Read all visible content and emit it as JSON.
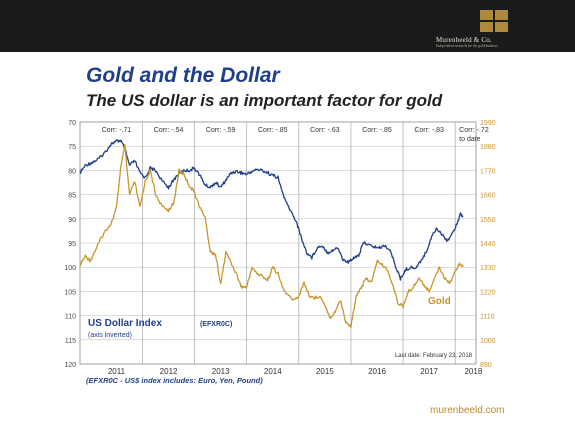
{
  "brand": {
    "name": "Murenbeeld & Co.",
    "tagline": "Independent research for the gold business",
    "footer_url": "murenbeeld.com"
  },
  "header": {
    "title": "Gold and the Dollar",
    "subtitle": "The US dollar is an important factor for gold"
  },
  "note": "(EFXR0C - US$ index includes: Euro, Yen, Pound)",
  "colors": {
    "usd": "#1f3f8a",
    "gold": "#c8962e",
    "title": "#1f3f8a",
    "grid": "#9a9a9a"
  },
  "chart_data": {
    "type": "line",
    "x_labels": [
      "2011",
      "2012",
      "2013",
      "2014",
      "2015",
      "2016",
      "2017",
      "2018"
    ],
    "xlim": [
      2010.8,
      2018.4
    ],
    "left_axis": {
      "ticks": [
        "70",
        "75",
        "80",
        "85",
        "90",
        "95",
        "100",
        "105",
        "110",
        "115",
        "120"
      ],
      "ylim": [
        70,
        120
      ],
      "inverted": true
    },
    "right_axis": {
      "ticks": [
        "1990",
        "1880",
        "1770",
        "1660",
        "1550",
        "1440",
        "1330",
        "1220",
        "1110",
        "1000",
        "890"
      ],
      "ylim": [
        890,
        1990
      ]
    },
    "correlations": [
      "Corr: -.71",
      "Corr: -.54",
      "Corr: -.59",
      "Corr: -.85",
      "Corr: -.63",
      "Corr: -.85",
      "Corr: -.83",
      "Corr: -.72"
    ],
    "correlation_extra": "to date",
    "series": [
      {
        "name": "US Dollar Index",
        "label_suffix": "(EFXR0C)",
        "sub_label": "(axis inverted)",
        "axis": "left",
        "color": "#1f3f8a",
        "points": [
          [
            2010.8,
            80.5
          ],
          [
            2010.9,
            79.0
          ],
          [
            2011.0,
            78.5
          ],
          [
            2011.1,
            78.0
          ],
          [
            2011.2,
            77.2
          ],
          [
            2011.3,
            76.0
          ],
          [
            2011.4,
            74.5
          ],
          [
            2011.5,
            74.0
          ],
          [
            2011.58,
            73.8
          ],
          [
            2011.66,
            75.5
          ],
          [
            2011.75,
            79.0
          ],
          [
            2011.85,
            78.0
          ],
          [
            2011.95,
            80.5
          ],
          [
            2012.05,
            81.5
          ],
          [
            2012.15,
            79.5
          ],
          [
            2012.25,
            80.0
          ],
          [
            2012.4,
            82.5
          ],
          [
            2012.5,
            83.5
          ],
          [
            2012.6,
            82.0
          ],
          [
            2012.7,
            80.5
          ],
          [
            2012.8,
            80.0
          ],
          [
            2012.9,
            80.0
          ],
          [
            2013.0,
            79.5
          ],
          [
            2013.1,
            81.0
          ],
          [
            2013.2,
            83.0
          ],
          [
            2013.3,
            83.5
          ],
          [
            2013.4,
            82.5
          ],
          [
            2013.5,
            83.5
          ],
          [
            2013.6,
            82.0
          ],
          [
            2013.7,
            80.5
          ],
          [
            2013.8,
            80.2
          ],
          [
            2013.9,
            80.5
          ],
          [
            2014.0,
            80.8
          ],
          [
            2014.1,
            80.2
          ],
          [
            2014.2,
            79.8
          ],
          [
            2014.3,
            80.0
          ],
          [
            2014.4,
            80.5
          ],
          [
            2014.5,
            81.0
          ],
          [
            2014.6,
            81.5
          ],
          [
            2014.67,
            84.0
          ],
          [
            2014.75,
            86.5
          ],
          [
            2014.85,
            88.5
          ],
          [
            2014.95,
            90.5
          ],
          [
            2015.05,
            94.0
          ],
          [
            2015.15,
            97.0
          ],
          [
            2015.25,
            98.0
          ],
          [
            2015.35,
            96.0
          ],
          [
            2015.45,
            95.5
          ],
          [
            2015.55,
            97.0
          ],
          [
            2015.65,
            96.5
          ],
          [
            2015.75,
            96.0
          ],
          [
            2015.85,
            98.5
          ],
          [
            2015.95,
            99.0
          ],
          [
            2016.05,
            98.0
          ],
          [
            2016.15,
            97.5
          ],
          [
            2016.25,
            94.8
          ],
          [
            2016.35,
            95.5
          ],
          [
            2016.45,
            95.8
          ],
          [
            2016.55,
            96.0
          ],
          [
            2016.65,
            95.5
          ],
          [
            2016.75,
            96.5
          ],
          [
            2016.85,
            99.5
          ],
          [
            2016.95,
            102.5
          ],
          [
            2017.05,
            100.5
          ],
          [
            2017.15,
            100.0
          ],
          [
            2017.25,
            100.2
          ],
          [
            2017.35,
            98.5
          ],
          [
            2017.45,
            96.8
          ],
          [
            2017.55,
            93.5
          ],
          [
            2017.65,
            92.0
          ],
          [
            2017.75,
            93.2
          ],
          [
            2017.85,
            94.5
          ],
          [
            2017.95,
            93.0
          ],
          [
            2018.05,
            90.5
          ],
          [
            2018.1,
            89.0
          ],
          [
            2018.15,
            89.5
          ]
        ]
      },
      {
        "name": "Gold",
        "axis": "right",
        "color": "#c8962e",
        "points": [
          [
            2010.8,
            1340
          ],
          [
            2010.9,
            1380
          ],
          [
            2011.0,
            1360
          ],
          [
            2011.1,
            1410
          ],
          [
            2011.2,
            1460
          ],
          [
            2011.3,
            1500
          ],
          [
            2011.4,
            1530
          ],
          [
            2011.5,
            1600
          ],
          [
            2011.58,
            1780
          ],
          [
            2011.66,
            1880
          ],
          [
            2011.75,
            1660
          ],
          [
            2011.85,
            1720
          ],
          [
            2011.95,
            1600
          ],
          [
            2012.05,
            1720
          ],
          [
            2012.15,
            1770
          ],
          [
            2012.25,
            1660
          ],
          [
            2012.4,
            1600
          ],
          [
            2012.5,
            1590
          ],
          [
            2012.6,
            1620
          ],
          [
            2012.7,
            1770
          ],
          [
            2012.8,
            1750
          ],
          [
            2012.9,
            1700
          ],
          [
            2013.0,
            1670
          ],
          [
            2013.1,
            1600
          ],
          [
            2013.2,
            1560
          ],
          [
            2013.3,
            1400
          ],
          [
            2013.4,
            1390
          ],
          [
            2013.5,
            1250
          ],
          [
            2013.6,
            1400
          ],
          [
            2013.7,
            1350
          ],
          [
            2013.8,
            1300
          ],
          [
            2013.9,
            1240
          ],
          [
            2014.0,
            1240
          ],
          [
            2014.1,
            1330
          ],
          [
            2014.2,
            1300
          ],
          [
            2014.3,
            1290
          ],
          [
            2014.4,
            1270
          ],
          [
            2014.5,
            1330
          ],
          [
            2014.6,
            1300
          ],
          [
            2014.7,
            1230
          ],
          [
            2014.8,
            1200
          ],
          [
            2014.9,
            1180
          ],
          [
            2015.0,
            1200
          ],
          [
            2015.1,
            1260
          ],
          [
            2015.2,
            1200
          ],
          [
            2015.3,
            1190
          ],
          [
            2015.4,
            1200
          ],
          [
            2015.5,
            1160
          ],
          [
            2015.6,
            1100
          ],
          [
            2015.7,
            1130
          ],
          [
            2015.8,
            1180
          ],
          [
            2015.9,
            1080
          ],
          [
            2016.0,
            1060
          ],
          [
            2016.1,
            1200
          ],
          [
            2016.2,
            1240
          ],
          [
            2016.3,
            1280
          ],
          [
            2016.4,
            1260
          ],
          [
            2016.5,
            1360
          ],
          [
            2016.6,
            1340
          ],
          [
            2016.7,
            1320
          ],
          [
            2016.8,
            1250
          ],
          [
            2016.9,
            1170
          ],
          [
            2017.0,
            1150
          ],
          [
            2017.1,
            1220
          ],
          [
            2017.2,
            1240
          ],
          [
            2017.3,
            1280
          ],
          [
            2017.4,
            1250
          ],
          [
            2017.5,
            1220
          ],
          [
            2017.6,
            1280
          ],
          [
            2017.7,
            1330
          ],
          [
            2017.8,
            1280
          ],
          [
            2017.9,
            1260
          ],
          [
            2018.0,
            1310
          ],
          [
            2018.08,
            1350
          ],
          [
            2018.15,
            1330
          ]
        ]
      }
    ],
    "last_date": "Last date: February 23, 2018",
    "grid": true
  }
}
